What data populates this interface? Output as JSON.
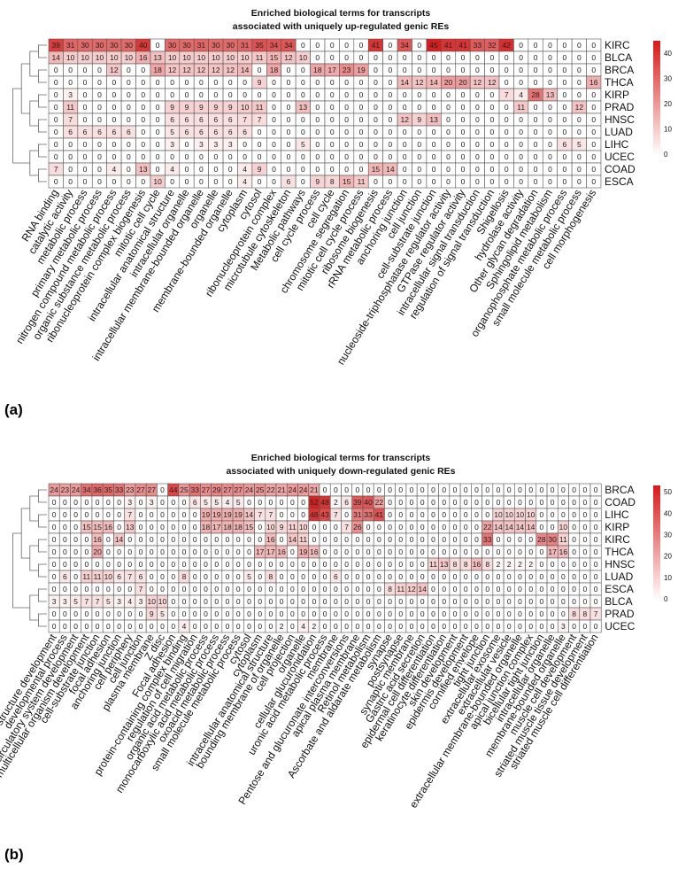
{
  "chart_data": [
    {
      "type": "heatmap",
      "panel": "(a)",
      "title": "Enriched biological terms for transcripts",
      "subtitle": "associated with uniquely up-regulated genic REs",
      "rows": [
        "KIRC",
        "BLCA",
        "BRCA",
        "THCA",
        "KIRP",
        "PRAD",
        "HNSC",
        "LUAD",
        "LIHC",
        "UCEC",
        "COAD",
        "ESCA"
      ],
      "columns": [
        "RNA binding",
        "catalytic activity",
        "metabolic process",
        "primary metabolic process",
        "nitrogen compound metabolic process",
        "organic substance metabolic process",
        "ribonucleoprotein complex biogenesis",
        "mitotic cell cycle",
        "intracellular anatomical structure",
        "intracellular organelle",
        "intracellular membrane-bounded organelle",
        "organelle",
        "membrane-bounded organelle",
        "cytoplasm",
        "cytosol",
        "ribonucleoprotein complex",
        "microtubule cytoskeleton",
        "Metabolic pathways",
        "cell cycle process",
        "cell cycle",
        "chromosome segregation",
        "mitotic cell cycle process",
        "ribosome biogenesis",
        "rRNA metabolic process",
        "anchoring junction",
        "cell junction",
        "cell-substrate junction",
        "nucleoside-triphosphatase regulator activity",
        "GTPase regulator activity",
        "intracellular signal transduction",
        "regulation of signal transduction",
        "Shigellosis",
        "hydrolase activity",
        "Other glycan degradation",
        "Sphingolipid metabolism",
        "organophosphate metabolic process",
        "small molecule metabolic process",
        "cell morphogenesis"
      ],
      "values": [
        [
          39,
          31,
          30,
          30,
          30,
          30,
          40,
          0,
          30,
          30,
          31,
          30,
          30,
          31,
          35,
          34,
          34,
          0,
          0,
          0,
          0,
          0,
          41,
          0,
          34,
          0,
          45,
          41,
          41,
          33,
          32,
          42,
          0,
          0,
          0,
          0,
          0,
          0
        ],
        [
          14,
          10,
          10,
          10,
          10,
          10,
          16,
          13,
          10,
          10,
          10,
          10,
          10,
          10,
          11,
          15,
          12,
          10,
          0,
          0,
          0,
          0,
          0,
          0,
          0,
          0,
          0,
          0,
          0,
          0,
          0,
          0,
          0,
          0,
          0,
          0,
          0,
          0
        ],
        [
          0,
          0,
          0,
          0,
          12,
          0,
          0,
          18,
          12,
          12,
          12,
          12,
          12,
          14,
          0,
          18,
          0,
          0,
          18,
          17,
          23,
          19,
          0,
          0,
          0,
          0,
          0,
          0,
          0,
          0,
          0,
          0,
          0,
          0,
          0,
          0,
          0,
          0
        ],
        [
          0,
          0,
          0,
          0,
          0,
          0,
          0,
          0,
          0,
          0,
          0,
          0,
          0,
          0,
          9,
          0,
          0,
          0,
          0,
          0,
          0,
          0,
          0,
          0,
          14,
          12,
          14,
          20,
          20,
          12,
          12,
          0,
          0,
          0,
          0,
          0,
          0,
          16
        ],
        [
          0,
          3,
          0,
          0,
          0,
          0,
          0,
          0,
          0,
          0,
          0,
          0,
          0,
          0,
          0,
          0,
          0,
          0,
          0,
          0,
          0,
          0,
          0,
          0,
          0,
          0,
          0,
          0,
          0,
          0,
          0,
          7,
          4,
          28,
          13,
          0,
          0,
          0
        ],
        [
          0,
          11,
          0,
          0,
          0,
          0,
          0,
          0,
          9,
          9,
          9,
          9,
          9,
          10,
          11,
          0,
          0,
          13,
          0,
          0,
          0,
          0,
          0,
          0,
          0,
          0,
          0,
          0,
          0,
          0,
          0,
          0,
          11,
          0,
          0,
          0,
          12,
          0
        ],
        [
          0,
          7,
          0,
          0,
          0,
          0,
          0,
          0,
          6,
          6,
          6,
          6,
          6,
          7,
          7,
          0,
          0,
          0,
          0,
          0,
          0,
          0,
          0,
          0,
          12,
          9,
          13,
          0,
          0,
          0,
          0,
          0,
          0,
          0,
          0,
          0,
          0,
          0
        ],
        [
          0,
          6,
          6,
          6,
          6,
          6,
          0,
          0,
          5,
          6,
          6,
          6,
          6,
          6,
          0,
          0,
          0,
          0,
          0,
          0,
          0,
          0,
          0,
          0,
          0,
          0,
          0,
          0,
          0,
          0,
          0,
          0,
          0,
          0,
          0,
          0,
          0,
          0
        ],
        [
          0,
          0,
          0,
          0,
          0,
          0,
          0,
          0,
          3,
          0,
          3,
          3,
          3,
          0,
          0,
          0,
          0,
          5,
          0,
          0,
          0,
          0,
          0,
          0,
          0,
          0,
          0,
          0,
          0,
          0,
          0,
          0,
          0,
          0,
          0,
          6,
          5,
          0
        ],
        [
          0,
          0,
          0,
          0,
          0,
          0,
          0,
          0,
          0,
          0,
          0,
          0,
          0,
          0,
          0,
          0,
          0,
          0,
          0,
          0,
          0,
          0,
          0,
          0,
          0,
          0,
          0,
          0,
          0,
          0,
          0,
          0,
          0,
          0,
          0,
          0,
          0,
          0
        ],
        [
          7,
          0,
          0,
          0,
          4,
          0,
          13,
          0,
          4,
          0,
          0,
          0,
          0,
          4,
          9,
          0,
          0,
          0,
          0,
          0,
          0,
          0,
          15,
          14,
          0,
          0,
          0,
          0,
          0,
          0,
          0,
          0,
          0,
          0,
          0,
          0,
          0,
          0
        ],
        [
          0,
          0,
          0,
          0,
          0,
          0,
          0,
          10,
          0,
          0,
          0,
          0,
          0,
          4,
          0,
          0,
          6,
          0,
          9,
          8,
          15,
          11,
          0,
          0,
          0,
          0,
          0,
          0,
          0,
          0,
          0,
          0,
          0,
          0,
          0,
          0,
          0,
          0
        ]
      ],
      "colorbar": {
        "ticks": [
          0,
          10,
          20,
          30,
          40
        ],
        "max": 45
      }
    },
    {
      "type": "heatmap",
      "panel": "(b)",
      "title": "Enriched biological terms for transcripts",
      "subtitle": "associated with uniquely down-regulated genic REs",
      "rows": [
        "BRCA",
        "COAD",
        "LIHC",
        "KIRP",
        "KIRC",
        "THCA",
        "HNSC",
        "LUAD",
        "ESCA",
        "BLCA",
        "PRAD",
        "UCEC"
      ],
      "columns": [
        "anatomical structure development",
        "developmental process",
        "circulatory system development",
        "multicellular organism development",
        "cell-substrate junction",
        "focal adhesion",
        "anchoring junction",
        "cell periphery",
        "cell junction",
        "plasma membrane",
        "Z disc",
        "Focal adhesion",
        "protein-containing complex binding",
        "regulation of cell migration",
        "organic acid metabolic process",
        "monocarboxylic acid metabolic process",
        "oxoacid metabolic process",
        "small molecule metabolic process",
        "cytosol",
        "cytoplasm",
        "intracellular anatomical structure",
        "bounding membrane of organelle",
        "cell projection",
        "organelle",
        "cellular glucuronidation",
        "uronic acid metabolic process",
        "membrane",
        "Pentose and glucuronate interconversions",
        "apical plasma membrane",
        "Retinol metabolism",
        "Ascorbate and aldarate metabolism",
        "synapse",
        "postsynapse",
        "synaptic membrane",
        "Gastric acid secretion",
        "epidermal cell differentiation",
        "keratinocyte differentiation",
        "skin development",
        "epidermis development",
        "cornified envelope",
        "tight junction",
        "extracellular exosome",
        "extracellular vesicle",
        "extracellular membrane-bounded organelle",
        "apical junction complex",
        "bicellular tight junction",
        "intracellular organelle",
        "membrane-bounded organelle",
        "muscle cell development",
        "striated muscle tissue development",
        "striated muscle cell differentiation"
      ],
      "values": [
        [
          24,
          23,
          24,
          34,
          36,
          35,
          33,
          23,
          27,
          27,
          0,
          44,
          25,
          33,
          27,
          29,
          27,
          27,
          24,
          25,
          22,
          21,
          24,
          24,
          21,
          0,
          0,
          0,
          0,
          0,
          0,
          0,
          0,
          0,
          0,
          0,
          0,
          0,
          0,
          0,
          0,
          0,
          0,
          0,
          0,
          0,
          0,
          0,
          0,
          0,
          0
        ],
        [
          0,
          0,
          0,
          0,
          0,
          0,
          0,
          3,
          0,
          3,
          0,
          0,
          0,
          6,
          5,
          5,
          4,
          5,
          0,
          0,
          0,
          0,
          0,
          0,
          52,
          48,
          2,
          6,
          39,
          40,
          22,
          0,
          0,
          0,
          0,
          0,
          0,
          0,
          0,
          0,
          0,
          0,
          0,
          0,
          0,
          0,
          0,
          0,
          0,
          0,
          0
        ],
        [
          0,
          0,
          0,
          0,
          0,
          0,
          0,
          7,
          0,
          0,
          0,
          0,
          0,
          0,
          19,
          19,
          19,
          19,
          14,
          7,
          7,
          0,
          0,
          0,
          48,
          43,
          7,
          0,
          31,
          33,
          41,
          0,
          0,
          0,
          0,
          0,
          0,
          0,
          0,
          0,
          0,
          10,
          10,
          10,
          10,
          0,
          0,
          0,
          0,
          0,
          0
        ],
        [
          0,
          0,
          0,
          15,
          15,
          16,
          0,
          13,
          0,
          0,
          0,
          0,
          0,
          0,
          18,
          17,
          18,
          18,
          15,
          0,
          10,
          9,
          11,
          10,
          0,
          0,
          0,
          7,
          26,
          0,
          0,
          0,
          0,
          0,
          0,
          0,
          0,
          0,
          0,
          0,
          22,
          14,
          14,
          14,
          14,
          0,
          0,
          10,
          0,
          0,
          0
        ],
        [
          0,
          0,
          0,
          0,
          16,
          0,
          14,
          0,
          0,
          0,
          0,
          0,
          0,
          0,
          0,
          0,
          0,
          0,
          0,
          0,
          16,
          0,
          14,
          11,
          0,
          0,
          0,
          0,
          0,
          0,
          0,
          0,
          0,
          0,
          0,
          0,
          0,
          0,
          0,
          0,
          33,
          0,
          0,
          0,
          0,
          28,
          30,
          11,
          0,
          0,
          0
        ],
        [
          0,
          0,
          0,
          0,
          20,
          0,
          0,
          0,
          0,
          0,
          0,
          0,
          0,
          0,
          0,
          0,
          0,
          0,
          0,
          17,
          17,
          16,
          0,
          19,
          16,
          0,
          0,
          0,
          0,
          0,
          0,
          0,
          0,
          0,
          0,
          0,
          0,
          0,
          0,
          0,
          0,
          0,
          0,
          0,
          0,
          0,
          17,
          16,
          0,
          0,
          0
        ],
        [
          0,
          0,
          0,
          0,
          0,
          0,
          0,
          0,
          0,
          0,
          0,
          0,
          0,
          0,
          0,
          0,
          0,
          0,
          0,
          0,
          0,
          0,
          0,
          0,
          0,
          0,
          0,
          0,
          0,
          0,
          0,
          0,
          0,
          0,
          0,
          11,
          13,
          8,
          8,
          16,
          8,
          2,
          2,
          2,
          2,
          0,
          0,
          0,
          0,
          0,
          0
        ],
        [
          0,
          6,
          0,
          11,
          11,
          10,
          6,
          7,
          6,
          0,
          0,
          0,
          8,
          0,
          0,
          0,
          0,
          0,
          5,
          0,
          8,
          0,
          0,
          0,
          0,
          0,
          6,
          0,
          0,
          0,
          0,
          0,
          0,
          0,
          0,
          0,
          0,
          0,
          0,
          0,
          0,
          0,
          0,
          0,
          0,
          0,
          0,
          0,
          0,
          0,
          0
        ],
        [
          0,
          0,
          0,
          0,
          0,
          0,
          0,
          0,
          7,
          0,
          0,
          0,
          0,
          0,
          0,
          0,
          0,
          0,
          0,
          0,
          0,
          0,
          0,
          0,
          0,
          0,
          0,
          0,
          0,
          0,
          0,
          8,
          11,
          12,
          14,
          0,
          0,
          0,
          0,
          0,
          0,
          0,
          0,
          0,
          0,
          0,
          0,
          0,
          0,
          0,
          0
        ],
        [
          3,
          3,
          5,
          7,
          7,
          5,
          3,
          4,
          3,
          10,
          10,
          0,
          0,
          0,
          0,
          0,
          0,
          0,
          0,
          0,
          0,
          0,
          0,
          0,
          0,
          0,
          0,
          0,
          0,
          0,
          0,
          0,
          0,
          0,
          0,
          0,
          0,
          0,
          0,
          0,
          0,
          0,
          0,
          0,
          0,
          0,
          0,
          0,
          0,
          0,
          0
        ],
        [
          0,
          0,
          0,
          0,
          0,
          0,
          0,
          0,
          0,
          9,
          5,
          0,
          0,
          0,
          0,
          0,
          0,
          0,
          0,
          0,
          0,
          0,
          0,
          0,
          0,
          0,
          0,
          0,
          0,
          0,
          0,
          0,
          0,
          0,
          0,
          0,
          0,
          0,
          0,
          0,
          0,
          0,
          0,
          0,
          0,
          0,
          0,
          0,
          8,
          8,
          7
        ],
        [
          0,
          0,
          0,
          0,
          0,
          0,
          0,
          0,
          0,
          0,
          0,
          0,
          4,
          0,
          0,
          0,
          0,
          0,
          0,
          0,
          0,
          2,
          0,
          4,
          2,
          0,
          0,
          0,
          0,
          0,
          0,
          0,
          0,
          0,
          0,
          0,
          0,
          0,
          0,
          0,
          0,
          0,
          0,
          0,
          0,
          0,
          0,
          3,
          0,
          0,
          0
        ]
      ],
      "colorbar": {
        "ticks": [
          0,
          10,
          20,
          30,
          40,
          50
        ],
        "max": 53
      }
    }
  ]
}
